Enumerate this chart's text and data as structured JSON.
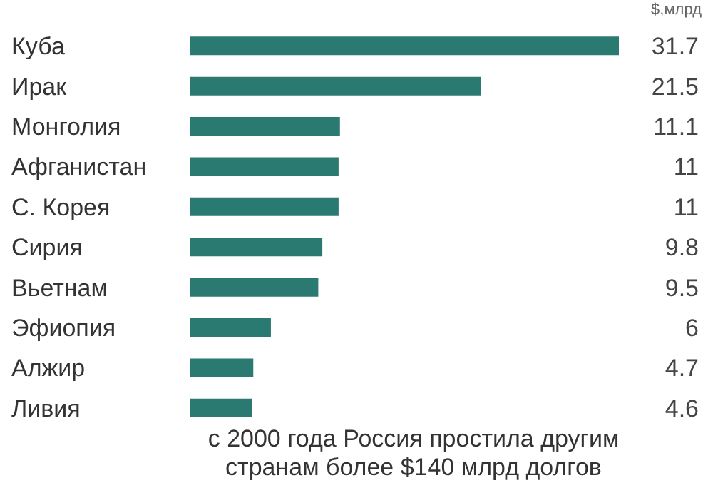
{
  "chart_data": {
    "type": "bar",
    "orientation": "horizontal",
    "categories": [
      "Куба",
      "Ирак",
      "Монголия",
      "Афганистан",
      "С. Корея",
      "Сирия",
      "Вьетнам",
      "Эфиопия",
      "Алжир",
      "Ливия"
    ],
    "values": [
      31.7,
      21.5,
      11.1,
      11,
      11,
      9.8,
      9.5,
      6,
      4.7,
      4.6
    ],
    "color": "#2b7a72",
    "data_labels": true,
    "xlabel": "$,млрд",
    "grid": false,
    "legend": false,
    "annotations": [
      "с 2000 года Россия простила другим странам более $140 млрд долгов"
    ]
  }
}
